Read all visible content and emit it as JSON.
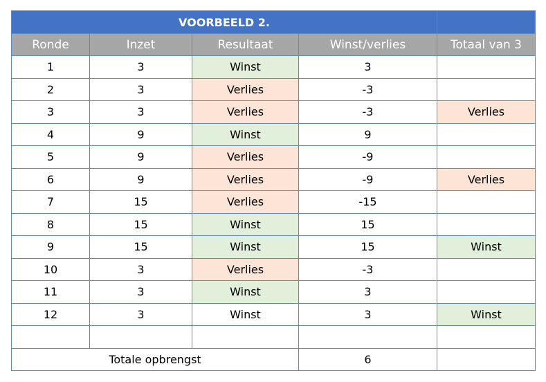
{
  "title": "VOORBEELD 2.",
  "headers": {
    "round": "Ronde",
    "stake": "Inzet",
    "result": "Resultaat",
    "winloss": "Winst/verlies",
    "total3": "Totaal van 3"
  },
  "colors": {
    "title_bg": "#4472c4",
    "header_bg": "#a6a6a6",
    "win_bg": "#e2efda",
    "loss_bg": "#fce4d6",
    "border": "#5b8ac4"
  },
  "rows": [
    {
      "round": "1",
      "stake": "3",
      "result": "Winst",
      "result_style": "win",
      "winloss": "3",
      "total3": "",
      "total3_style": "plain"
    },
    {
      "round": "2",
      "stake": "3",
      "result": "Verlies",
      "result_style": "loss",
      "winloss": "-3",
      "total3": "",
      "total3_style": "plain"
    },
    {
      "round": "3",
      "stake": "3",
      "result": "Verlies",
      "result_style": "loss",
      "winloss": "-3",
      "total3": "Verlies",
      "total3_style": "loss"
    },
    {
      "round": "4",
      "stake": "9",
      "result": "Winst",
      "result_style": "win",
      "winloss": "9",
      "total3": "",
      "total3_style": "plain"
    },
    {
      "round": "5",
      "stake": "9",
      "result": "Verlies",
      "result_style": "loss",
      "winloss": "-9",
      "total3": "",
      "total3_style": "plain"
    },
    {
      "round": "6",
      "stake": "9",
      "result": "Verlies",
      "result_style": "loss",
      "winloss": "-9",
      "total3": "Verlies",
      "total3_style": "loss"
    },
    {
      "round": "7",
      "stake": "15",
      "result": "Verlies",
      "result_style": "loss",
      "winloss": "-15",
      "total3": "",
      "total3_style": "plain"
    },
    {
      "round": "8",
      "stake": "15",
      "result": "Winst",
      "result_style": "win",
      "winloss": "15",
      "total3": "",
      "total3_style": "plain"
    },
    {
      "round": "9",
      "stake": "15",
      "result": "Winst",
      "result_style": "win",
      "winloss": "15",
      "total3": "Winst",
      "total3_style": "win"
    },
    {
      "round": "10",
      "stake": "3",
      "result": "Verlies",
      "result_style": "loss",
      "winloss": "-3",
      "total3": "",
      "total3_style": "plain"
    },
    {
      "round": "11",
      "stake": "3",
      "result": "Winst",
      "result_style": "win",
      "winloss": "3",
      "total3": "",
      "total3_style": "plain"
    },
    {
      "round": "12",
      "stake": "3",
      "result": "Winst",
      "result_style": "plain",
      "winloss": "3",
      "total3": "Winst",
      "total3_style": "win"
    }
  ],
  "total": {
    "label": "Totale opbrengst",
    "value": "6"
  }
}
